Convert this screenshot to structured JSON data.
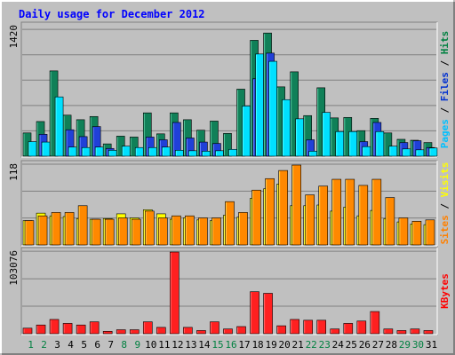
{
  "chart_data": [
    {
      "type": "bar",
      "title": "Daily usage for December 2012",
      "panel": "pages-files-hits",
      "y_max_label": "1420",
      "ylim": [
        0,
        1420
      ],
      "categories": [
        "1",
        "2",
        "3",
        "4",
        "5",
        "6",
        "7",
        "8",
        "9",
        "10",
        "11",
        "12",
        "13",
        "14",
        "15",
        "16",
        "17",
        "18",
        "19",
        "20",
        "21",
        "22",
        "23",
        "24",
        "25",
        "26",
        "27",
        "28",
        "29",
        "30",
        "31"
      ],
      "weekend_days": [
        "1",
        "2",
        "8",
        "9",
        "15",
        "16",
        "22",
        "23",
        "29",
        "30"
      ],
      "y_label_segments": [
        {
          "text": "Pages",
          "color": "#00c0ff"
        },
        {
          "text": " / ",
          "color": "#000000"
        },
        {
          "text": "Files",
          "color": "#0030d0"
        },
        {
          "text": " / ",
          "color": "#000000"
        },
        {
          "text": "Hits",
          "color": "#008040"
        }
      ],
      "series": [
        {
          "name": "Hits",
          "color": "#108058",
          "values": [
            255,
            380,
            935,
            450,
            400,
            435,
            135,
            220,
            210,
            475,
            245,
            475,
            400,
            285,
            385,
            250,
            735,
            1270,
            1350,
            760,
            925,
            445,
            750,
            420,
            425,
            280,
            415,
            255,
            185,
            175,
            150
          ]
        },
        {
          "name": "Files",
          "color": "#2040d8",
          "values": [
            0,
            240,
            0,
            290,
            215,
            325,
            85,
            0,
            0,
            210,
            180,
            370,
            200,
            155,
            140,
            0,
            0,
            850,
            1130,
            0,
            0,
            180,
            0,
            0,
            0,
            160,
            370,
            0,
            150,
            170,
            95
          ]
        },
        {
          "name": "Pages",
          "color": "#00e0ff",
          "values": [
            160,
            155,
            650,
            100,
            95,
            100,
            65,
            110,
            95,
            95,
            100,
            65,
            60,
            55,
            60,
            75,
            550,
            1120,
            1040,
            620,
            410,
            55,
            480,
            270,
            270,
            105,
            270,
            110,
            80,
            70,
            90
          ]
        }
      ]
    },
    {
      "type": "bar",
      "panel": "sites-visits",
      "y_max_label": "118",
      "ylim": [
        0,
        118
      ],
      "categories": [
        "1",
        "2",
        "3",
        "4",
        "5",
        "6",
        "7",
        "8",
        "9",
        "10",
        "11",
        "12",
        "13",
        "14",
        "15",
        "16",
        "17",
        "18",
        "19",
        "20",
        "21",
        "22",
        "23",
        "24",
        "25",
        "26",
        "27",
        "28",
        "29",
        "30",
        "31"
      ],
      "y_label_segments": [
        {
          "text": "Sites",
          "color": "#ff8000"
        },
        {
          "text": " / ",
          "color": "#000000"
        },
        {
          "text": "Visits",
          "color": "#ffff00"
        }
      ],
      "series": [
        {
          "name": "Visits",
          "color": "#ffff00",
          "values": [
            36,
            47,
            43,
            42,
            39,
            38,
            39,
            46,
            40,
            52,
            46,
            38,
            40,
            37,
            36,
            44,
            41,
            69,
            83,
            90,
            58,
            58,
            59,
            50,
            56,
            43,
            51,
            39,
            34,
            31,
            30
          ]
        },
        {
          "name": "Sites",
          "color": "#ff8800",
          "values": [
            36,
            43,
            48,
            48,
            58,
            38,
            38,
            40,
            38,
            50,
            40,
            43,
            43,
            40,
            40,
            64,
            48,
            81,
            98,
            110,
            118,
            74,
            87,
            97,
            97,
            88,
            97,
            70,
            40,
            35,
            37
          ]
        }
      ]
    },
    {
      "type": "bar",
      "panel": "kbytes",
      "y_max_label": "103076",
      "ylim": [
        0,
        103076
      ],
      "categories": [
        "1",
        "2",
        "3",
        "4",
        "5",
        "6",
        "7",
        "8",
        "9",
        "10",
        "11",
        "12",
        "13",
        "14",
        "15",
        "16",
        "17",
        "18",
        "19",
        "20",
        "21",
        "22",
        "23",
        "24",
        "25",
        "26",
        "27",
        "28",
        "29",
        "30",
        "31"
      ],
      "y_label_segments": [
        {
          "text": "KBytes",
          "color": "#ff0000"
        }
      ],
      "series": [
        {
          "name": "KBytes",
          "color": "#ff2020",
          "values": [
            7000,
            11000,
            18000,
            13000,
            11000,
            15000,
            3000,
            5000,
            5000,
            15000,
            8000,
            103076,
            8000,
            4000,
            15000,
            6000,
            9000,
            53000,
            51000,
            10000,
            18000,
            17000,
            17000,
            6000,
            13000,
            16000,
            28000,
            6000,
            4000,
            6000,
            4000
          ]
        }
      ]
    }
  ]
}
